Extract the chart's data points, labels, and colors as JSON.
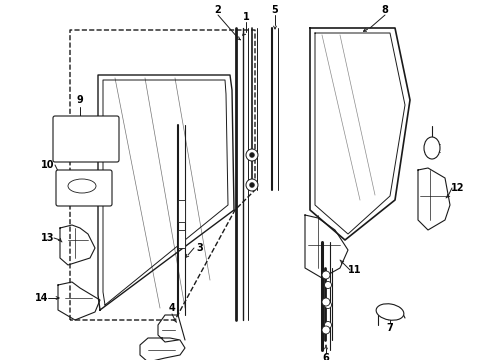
{
  "bg_color": "#ffffff",
  "lc": "#1a1a1a",
  "figsize": [
    4.9,
    3.6
  ],
  "dpi": 100,
  "xlim": [
    0,
    490
  ],
  "ylim": [
    0,
    360
  ]
}
